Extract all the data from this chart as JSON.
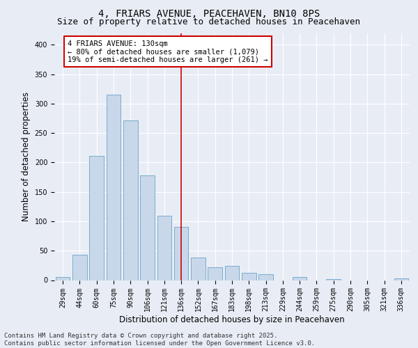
{
  "title_line1": "4, FRIARS AVENUE, PEACEHAVEN, BN10 8PS",
  "title_line2": "Size of property relative to detached houses in Peacehaven",
  "xlabel": "Distribution of detached houses by size in Peacehaven",
  "ylabel": "Number of detached properties",
  "categories": [
    "29sqm",
    "44sqm",
    "60sqm",
    "75sqm",
    "90sqm",
    "106sqm",
    "121sqm",
    "136sqm",
    "152sqm",
    "167sqm",
    "183sqm",
    "198sqm",
    "213sqm",
    "229sqm",
    "244sqm",
    "259sqm",
    "275sqm",
    "290sqm",
    "305sqm",
    "321sqm",
    "336sqm"
  ],
  "values": [
    5,
    43,
    211,
    315,
    271,
    178,
    110,
    90,
    38,
    22,
    24,
    13,
    10,
    0,
    5,
    0,
    2,
    0,
    0,
    0,
    3
  ],
  "bar_color": "#c8d8ea",
  "bar_edge_color": "#7aaace",
  "vline_x_index": 7,
  "vline_color": "#cc0000",
  "annotation_text": "4 FRIARS AVENUE: 130sqm\n← 80% of detached houses are smaller (1,079)\n19% of semi-detached houses are larger (261) →",
  "annotation_box_color": "#ffffff",
  "annotation_box_edge": "#cc0000",
  "background_color": "#e8edf5",
  "plot_bg_color": "#e8edf5",
  "footer_line1": "Contains HM Land Registry data © Crown copyright and database right 2025.",
  "footer_line2": "Contains public sector information licensed under the Open Government Licence v3.0.",
  "ylim": [
    0,
    420
  ],
  "yticks": [
    0,
    50,
    100,
    150,
    200,
    250,
    300,
    350,
    400
  ],
  "title_fontsize": 10,
  "subtitle_fontsize": 9,
  "axis_label_fontsize": 8.5,
  "tick_fontsize": 7,
  "annotation_fontsize": 7.5,
  "footer_fontsize": 6.5
}
